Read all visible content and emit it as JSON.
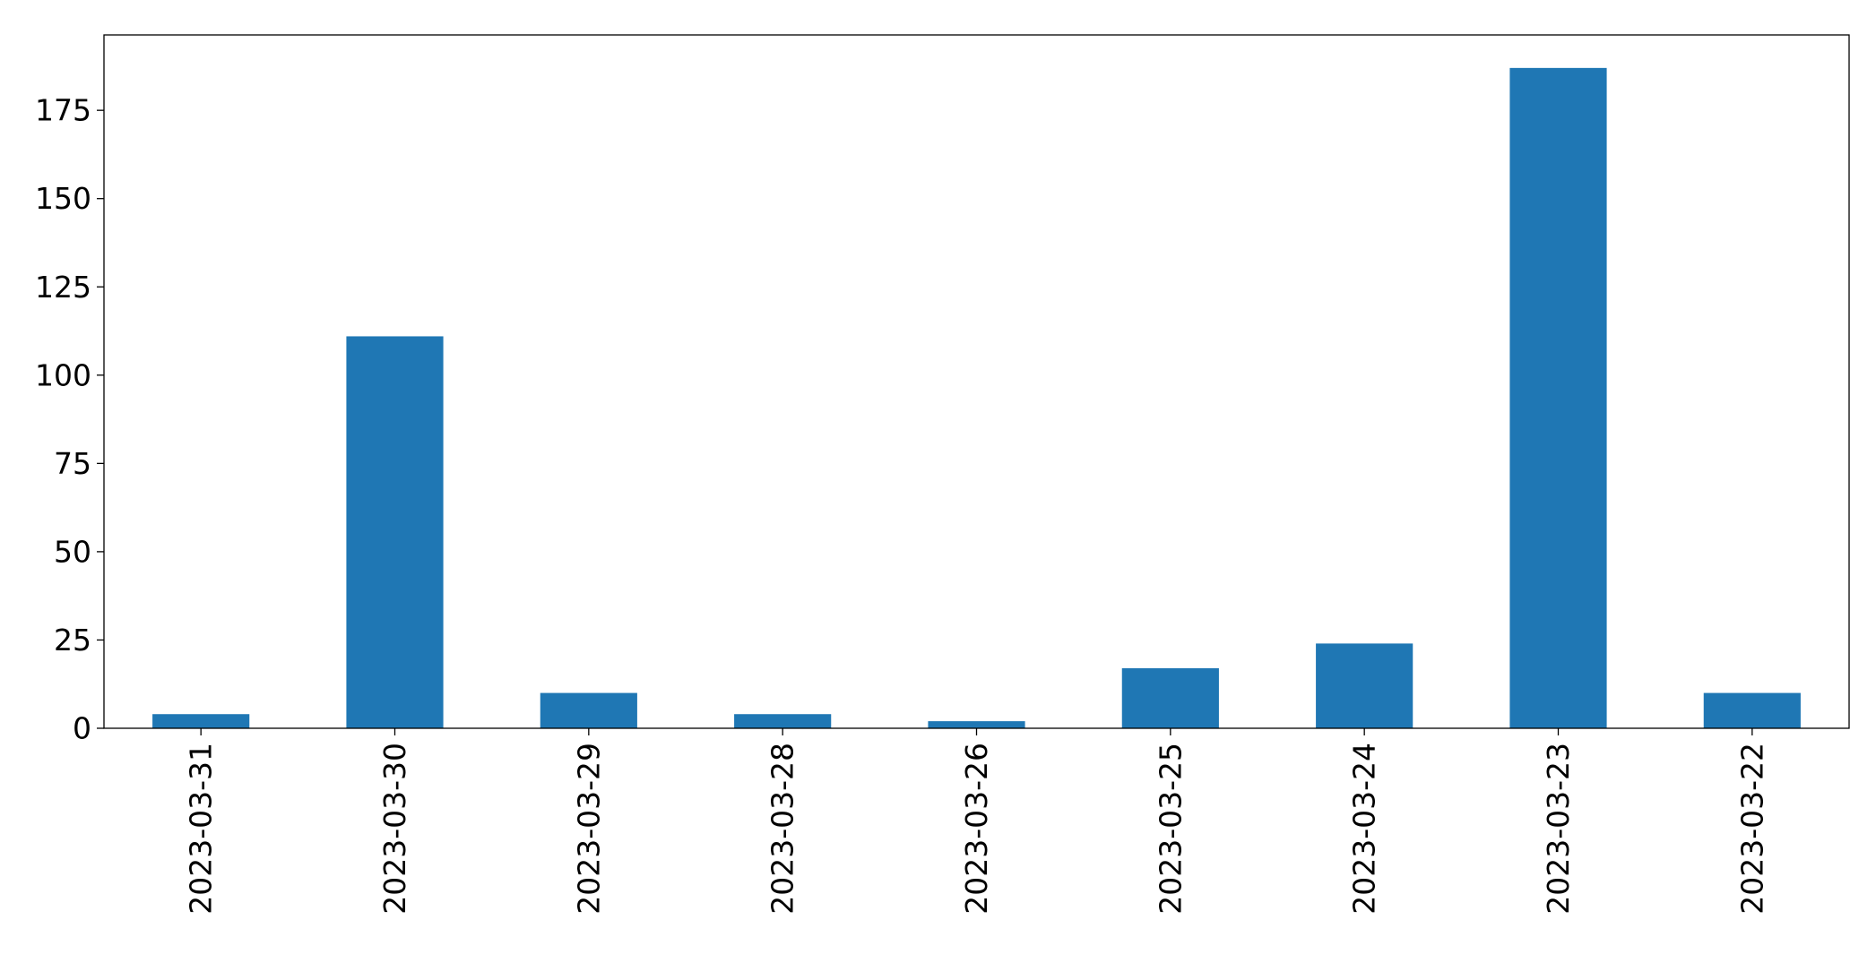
{
  "chart_data": {
    "type": "bar",
    "title": "",
    "xlabel": "",
    "ylabel": "",
    "categories": [
      "2023-03-31",
      "2023-03-30",
      "2023-03-29",
      "2023-03-28",
      "2023-03-26",
      "2023-03-25",
      "2023-03-24",
      "2023-03-23",
      "2023-03-22"
    ],
    "values": [
      4,
      111,
      10,
      4,
      2,
      17,
      24,
      187,
      10
    ],
    "ylim": [
      0,
      196.35
    ],
    "yticks": [
      0,
      25,
      50,
      75,
      100,
      125,
      150,
      175
    ],
    "ytick_labels": [
      "0",
      "25",
      "50",
      "75",
      "100",
      "125",
      "150",
      "175"
    ],
    "bar_color": "#1f77b4",
    "grid": false,
    "legend": false,
    "xtick_rotation": "vertical"
  }
}
